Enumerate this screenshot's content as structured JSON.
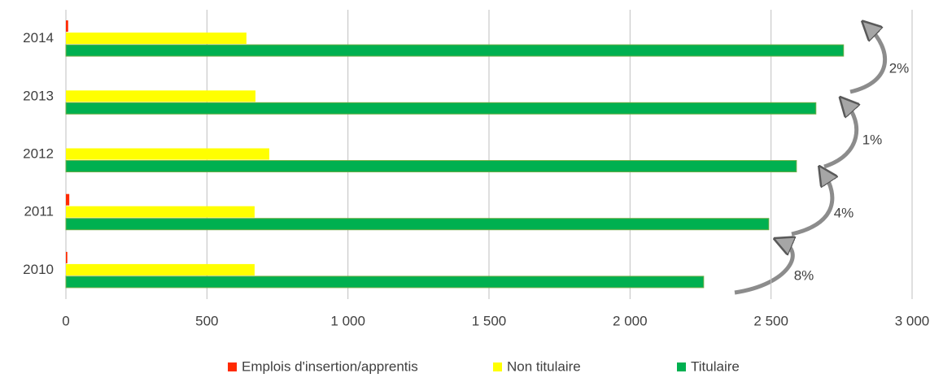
{
  "chart_data": {
    "type": "hbar",
    "categories": [
      "2010",
      "2011",
      "2012",
      "2013",
      "2014"
    ],
    "series": [
      {
        "name": "Emplois d'insertion/apprentis",
        "color": "#ff2a00",
        "values": [
          5,
          12,
          0,
          0,
          8
        ]
      },
      {
        "name": "Non titulaire",
        "color": "#ffff00",
        "values": [
          669,
          669,
          721,
          672,
          640
        ]
      },
      {
        "name": "Titulaire",
        "color": "#00b050",
        "values": [
          2261,
          2492,
          2590,
          2659,
          2757
        ]
      }
    ],
    "xlim": [
      0,
      3000
    ],
    "xticks": [
      0,
      500,
      {
        "value": 1000,
        "label": "1 000"
      },
      {
        "value": 1500,
        "label": "1 500"
      },
      {
        "value": 2000,
        "label": "2 000"
      },
      {
        "value": 2500,
        "label": "2 500"
      },
      {
        "value": 3000,
        "label": "3 000"
      }
    ],
    "grid": true,
    "legend": "bottom",
    "annotations": [
      "8%",
      "4%",
      "1%",
      "2%"
    ]
  }
}
